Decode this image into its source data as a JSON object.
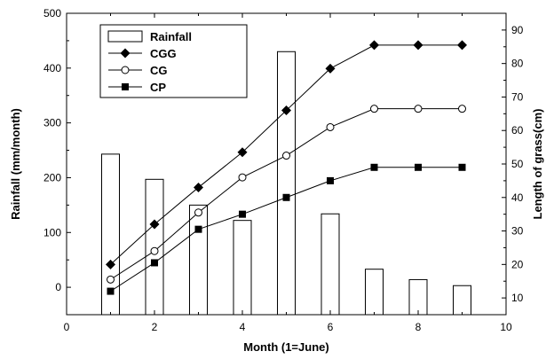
{
  "chart_data": {
    "type": "bar+line",
    "x_axis": {
      "label": "Month (1=June)",
      "range": [
        0,
        10
      ],
      "ticks": [
        "0",
        "2",
        "4",
        "6",
        "8",
        "10"
      ]
    },
    "y_axis_left": {
      "label": "Rainfall (mm/month)",
      "range": [
        -50,
        500
      ],
      "ticks": [
        "0",
        "100",
        "200",
        "300",
        "400",
        "500"
      ]
    },
    "y_axis_right": {
      "label": "Length of grass(cm)",
      "range": [
        5,
        95
      ],
      "ticks": [
        "10",
        "20",
        "30",
        "40",
        "50",
        "60",
        "70",
        "80",
        "90"
      ]
    },
    "bars": {
      "name": "Rainfall",
      "x": [
        1,
        2,
        3,
        4,
        5,
        6,
        7,
        8,
        9
      ],
      "values": [
        243,
        197,
        150,
        122,
        430,
        134,
        33,
        14,
        3
      ]
    },
    "series": [
      {
        "name": "CGG",
        "marker": "diamond-filled",
        "x": [
          1,
          2,
          3,
          4,
          5,
          6,
          7,
          8,
          9
        ],
        "values": [
          20,
          32,
          43,
          53.5,
          66,
          78.5,
          85.5,
          85.5,
          85.5
        ]
      },
      {
        "name": "CG",
        "marker": "circle-open",
        "x": [
          1,
          2,
          3,
          4,
          5,
          6,
          7,
          8,
          9
        ],
        "values": [
          15.5,
          24,
          35.5,
          46,
          52.5,
          61,
          66.5,
          66.5,
          66.5
        ]
      },
      {
        "name": "CP",
        "marker": "square-filled",
        "x": [
          1,
          2,
          3,
          4,
          5,
          6,
          7,
          8,
          9
        ],
        "values": [
          12,
          20.5,
          30.5,
          35,
          40,
          45,
          49,
          49,
          49
        ]
      }
    ],
    "legend": {
      "placement": "top-left",
      "entries": [
        "Rainfall",
        "CGG",
        "CG",
        "CP"
      ]
    },
    "grid": false
  }
}
